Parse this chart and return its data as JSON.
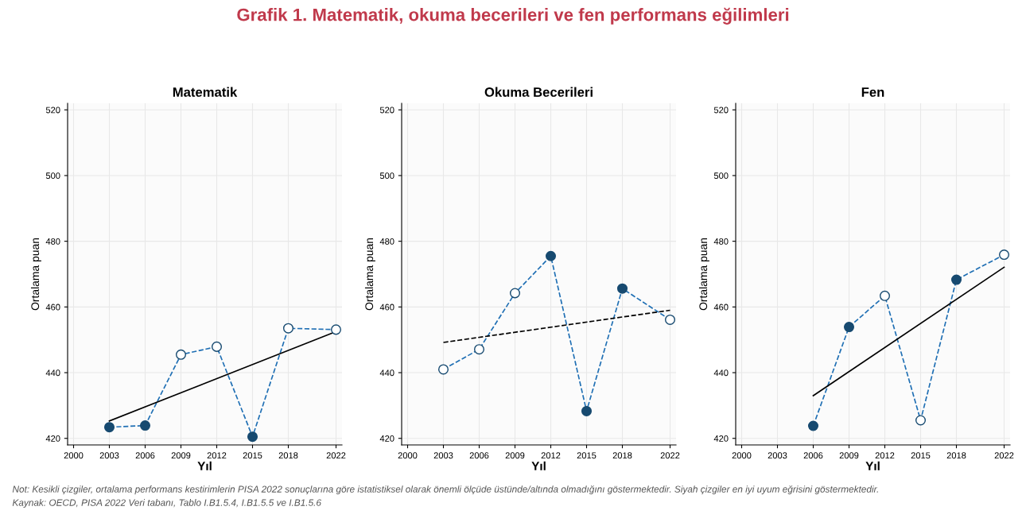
{
  "chart_data": [
    {
      "type": "line",
      "title": "Matematik",
      "xlabel": "Yıl",
      "ylabel": "Ortalama puan",
      "xlim": [
        1999.5,
        2022.5
      ],
      "xticks": [
        2000,
        2003,
        2006,
        2009,
        2012,
        2015,
        2018,
        2022
      ],
      "ylim": [
        418,
        522
      ],
      "yticks": [
        420,
        440,
        460,
        480,
        500,
        520
      ],
      "grid": true,
      "annotations": [
        "Grafik 1. Matematik, okuma becerileri ve fen performans eğilimleri",
        "Not: Kesikli çizgiler, ortalama performans kestirimlerin PISA 2022 sonuçlarına göre istatistiksel olarak önemli ölçüde üstünde/altında olmadığını göstermektedir. Siyah çizgiler en iyi uyum eğrisini göstermektedir.",
        "Kaynak: OECD, PISA 2022 Veri tabanı, Tablo I.B1.5.4, I.B1.5.5 ve I.B1.5.6"
      ],
      "series": [
        {
          "color": "#1f6fb4",
          "marker": "circle",
          "line_style": "dashed",
          "x": [
            2003,
            2006,
            2009,
            2012,
            2015,
            2018,
            2022
          ],
          "values": [
            423.4,
            423.9,
            445.5,
            447.9,
            420.5,
            453.5,
            453.1
          ],
          "colors": [
            "#174a70",
            "#174a70",
            "#ffffff",
            "#ffffff",
            "#174a70",
            "#ffffff",
            "#ffffff"
          ]
        },
        {
          "color": "#000000",
          "marker": "none",
          "line_style": "solid",
          "x": [
            2003,
            2022
          ],
          "values": [
            425.3,
            452.5
          ]
        }
      ]
    },
    {
      "type": "line",
      "title": "Okuma Becerileri",
      "xlabel": "Yıl",
      "ylabel": "Ortalama puan",
      "xlim": [
        1999.5,
        2022.5
      ],
      "xticks": [
        2000,
        2003,
        2006,
        2009,
        2012,
        2015,
        2018,
        2022
      ],
      "ylim": [
        418,
        522
      ],
      "yticks": [
        420,
        440,
        460,
        480,
        500,
        520
      ],
      "grid": true,
      "series": [
        {
          "color": "#1f6fb4",
          "marker": "circle",
          "line_style": "dashed",
          "x": [
            2003,
            2006,
            2009,
            2012,
            2015,
            2018,
            2022
          ],
          "values": [
            441.0,
            447.1,
            464.2,
            475.5,
            428.3,
            465.6,
            456.1
          ],
          "colors": [
            "#ffffff",
            "#ffffff",
            "#ffffff",
            "#174a70",
            "#174a70",
            "#174a70",
            "#ffffff"
          ]
        },
        {
          "color": "#000000",
          "marker": "none",
          "line_style": "dashed",
          "x": [
            2003,
            2022
          ],
          "values": [
            449.2,
            459.0
          ]
        }
      ]
    },
    {
      "type": "line",
      "title": "Fen",
      "xlabel": "Yıl",
      "ylabel": "Ortalama puan",
      "xlim": [
        1999.5,
        2022.5
      ],
      "xticks": [
        2000,
        2003,
        2006,
        2009,
        2012,
        2015,
        2018,
        2022
      ],
      "ylim": [
        418,
        522
      ],
      "yticks": [
        420,
        440,
        460,
        480,
        500,
        520
      ],
      "grid": true,
      "series": [
        {
          "color": "#1f6fb4",
          "marker": "circle",
          "line_style": "dashed",
          "x": [
            2006,
            2009,
            2012,
            2015,
            2018,
            2022
          ],
          "values": [
            423.8,
            453.9,
            463.4,
            425.5,
            468.3,
            475.9
          ],
          "colors": [
            "#174a70",
            "#174a70",
            "#ffffff",
            "#ffffff",
            "#174a70",
            "#ffffff"
          ]
        },
        {
          "color": "#000000",
          "marker": "none",
          "line_style": "solid",
          "x": [
            2006,
            2022
          ],
          "values": [
            433.0,
            472.1
          ]
        }
      ]
    }
  ]
}
